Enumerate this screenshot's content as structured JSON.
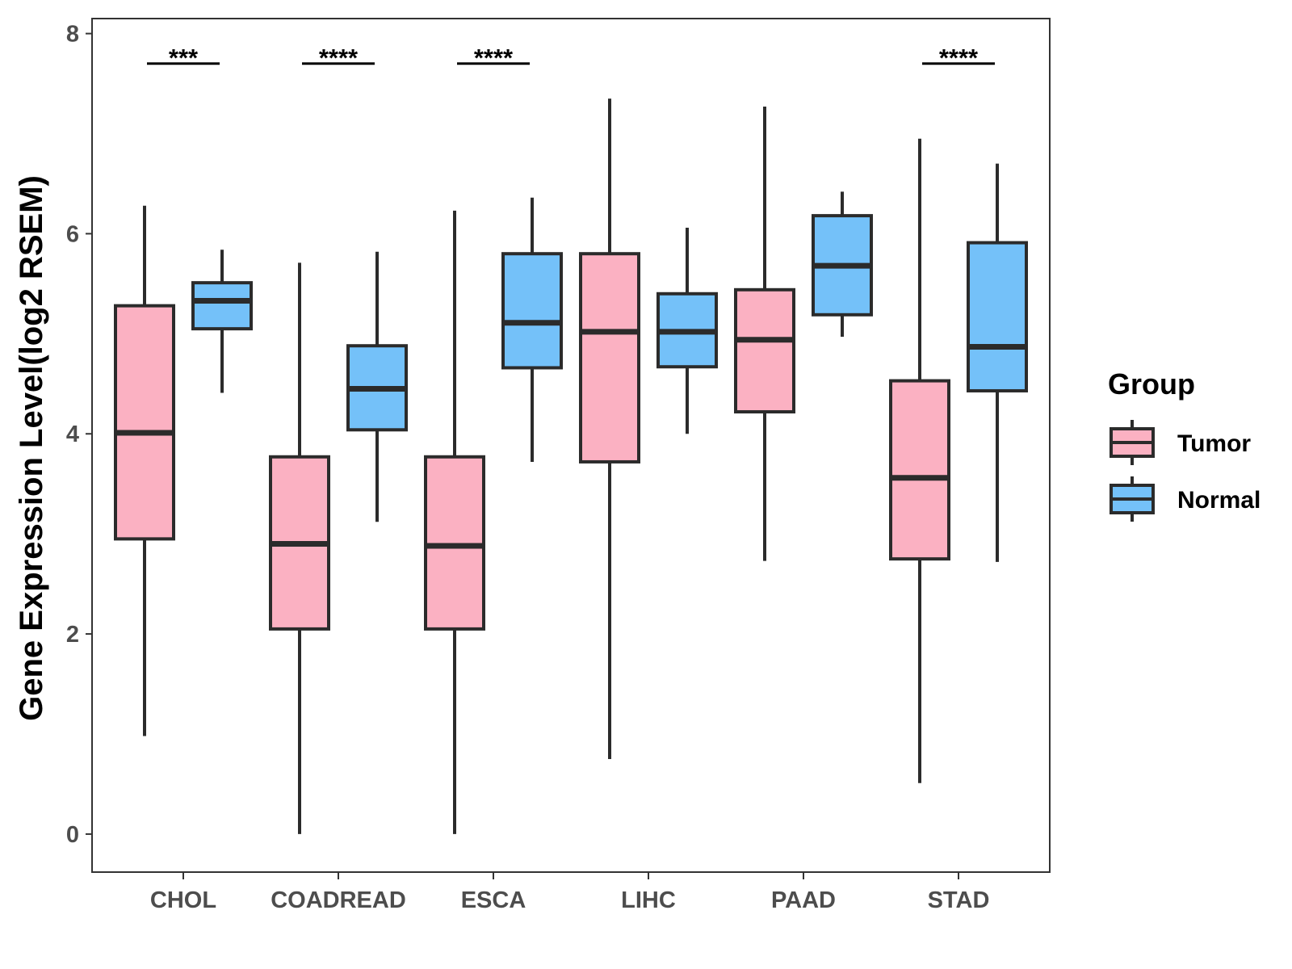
{
  "chart_data": {
    "type": "boxplot",
    "title": "",
    "xlabel": "",
    "ylabel": "Gene Expression Level(log2 RSEM)",
    "ylim": [
      -0.38,
      8.15
    ],
    "yticks": [
      0,
      2,
      4,
      6,
      8
    ],
    "grid": false,
    "legend_position": "right",
    "categories": [
      "CHOL",
      "COADREAD",
      "ESCA",
      "LIHC",
      "PAAD",
      "STAD"
    ],
    "legend": {
      "title": "Group",
      "entries": [
        {
          "name": "Tumor",
          "color": "#FBB1C2"
        },
        {
          "name": "Normal",
          "color": "#74C1F9"
        }
      ]
    },
    "series": [
      {
        "name": "Tumor",
        "color": "#FBB1C2",
        "boxes": [
          {
            "min": 0.98,
            "q1": 2.95,
            "median": 4.01,
            "q3": 5.28,
            "max": 6.28
          },
          {
            "min": 0.0,
            "q1": 2.05,
            "median": 2.9,
            "q3": 3.77,
            "max": 5.71
          },
          {
            "min": 0.0,
            "q1": 2.05,
            "median": 2.88,
            "q3": 3.77,
            "max": 6.23
          },
          {
            "min": 0.75,
            "q1": 3.72,
            "median": 5.02,
            "q3": 5.8,
            "max": 7.35
          },
          {
            "min": 2.73,
            "q1": 4.22,
            "median": 4.94,
            "q3": 5.44,
            "max": 7.27
          },
          {
            "min": 0.51,
            "q1": 2.75,
            "median": 3.56,
            "q3": 4.53,
            "max": 6.95
          }
        ]
      },
      {
        "name": "Normal",
        "color": "#74C1F9",
        "boxes": [
          {
            "min": 4.41,
            "q1": 5.05,
            "median": 5.33,
            "q3": 5.51,
            "max": 5.84
          },
          {
            "min": 3.12,
            "q1": 4.04,
            "median": 4.45,
            "q3": 4.88,
            "max": 5.82
          },
          {
            "min": 3.72,
            "q1": 4.66,
            "median": 5.11,
            "q3": 5.8,
            "max": 6.36
          },
          {
            "min": 4.0,
            "q1": 4.67,
            "median": 5.02,
            "q3": 5.4,
            "max": 6.06
          },
          {
            "min": 4.97,
            "q1": 5.19,
            "median": 5.68,
            "q3": 6.18,
            "max": 6.42
          },
          {
            "min": 2.72,
            "q1": 4.43,
            "median": 4.87,
            "q3": 5.91,
            "max": 6.7
          }
        ]
      }
    ],
    "annotations": [
      {
        "category": "CHOL",
        "label": "***",
        "y": 7.7
      },
      {
        "category": "COADREAD",
        "label": "****",
        "y": 7.7
      },
      {
        "category": "ESCA",
        "label": "****",
        "y": 7.7
      },
      {
        "category": "STAD",
        "label": "****",
        "y": 7.7
      }
    ]
  }
}
